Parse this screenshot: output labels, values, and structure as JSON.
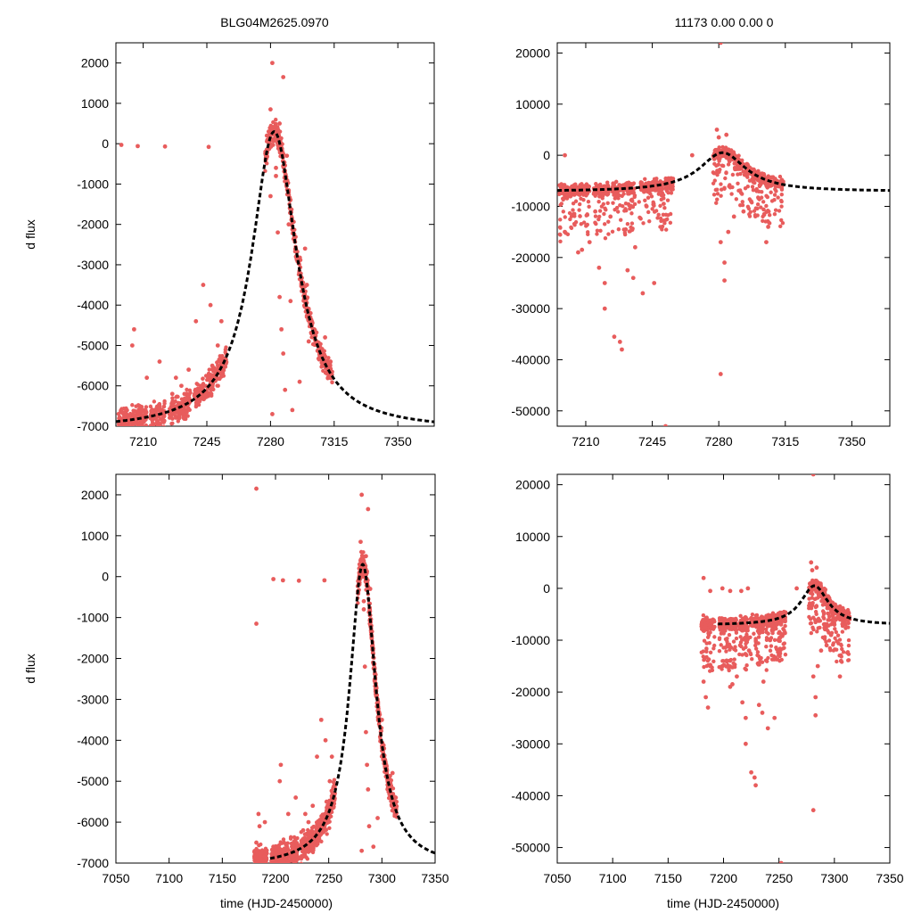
{
  "titles": {
    "left": "BLG04M2625.0970",
    "right": "11173  0.00  0.00  0"
  },
  "labels": {
    "ylabel": "d flux",
    "xlabel": "time (HJD-2450000)"
  },
  "colors": {
    "data": "#e85c5c",
    "model": "#000000"
  },
  "chart_data": [
    {
      "type": "scatter",
      "panel": "top-left",
      "xlim": [
        7195,
        7370
      ],
      "ylim": [
        -7000,
        2500
      ],
      "x_ticks": [
        7210,
        7245,
        7280,
        7315,
        7350
      ],
      "y_ticks": [
        2000,
        1000,
        0,
        -1000,
        -2000,
        -3000,
        -4000,
        -5000,
        -6000,
        -7000
      ],
      "model_curve": {
        "t0": 7282,
        "peak": 300,
        "base": -7100,
        "width": 15,
        "shape": "lorentzian"
      },
      "series": [
        {
          "kind": "points",
          "values": [
            [
              7198,
              -30
            ],
            [
              7207,
              -60
            ],
            [
              7222,
              -70
            ],
            [
              7246,
              -80
            ],
            [
              7281,
              2000
            ],
            [
              7287,
              1650
            ],
            [
              7285,
              500
            ],
            [
              7280,
              850
            ],
            [
              7279,
              300
            ],
            [
              7283,
              -600
            ],
            [
              7290,
              -1200
            ],
            [
              7294,
              -2800
            ],
            [
              7297,
              -3400
            ],
            [
              7302,
              -4200
            ],
            [
              7306,
              -5000
            ],
            [
              7310,
              -4800
            ],
            [
              7313,
              -5400
            ],
            [
              7285,
              -3800
            ],
            [
              7287,
              -5200
            ],
            [
              7288,
              -6100
            ],
            [
              7281,
              -6700
            ],
            [
              7292,
              -6600
            ],
            [
              7286,
              -4600
            ],
            [
              7291,
              -3900
            ],
            [
              7299,
              -2600
            ],
            [
              7243,
              -3500
            ],
            [
              7247,
              -4000
            ],
            [
              7239,
              -4400
            ],
            [
              7235,
              -5600
            ],
            [
              7228,
              -5800
            ],
            [
              7226,
              -6200
            ],
            [
              7219,
              -5400
            ],
            [
              7212,
              -5800
            ],
            [
              7205,
              -4600
            ],
            [
              7204,
              -5000
            ],
            [
              7208,
              -6500
            ],
            [
              7214,
              -6800
            ],
            [
              7198,
              -6600
            ],
            [
              7201,
              -6900
            ],
            [
              7233,
              -6400
            ],
            [
              7251,
              -5000
            ],
            [
              7253,
              -4400
            ],
            [
              7243,
              -6100
            ],
            [
              7231,
              -6000
            ],
            [
              7248,
              -5500
            ],
            [
              7284,
              -2200
            ],
            [
              7290,
              -2000
            ],
            [
              7300,
              -3500
            ],
            [
              7304,
              -4600
            ],
            [
              7308,
              -5200
            ],
            [
              7296,
              -5900
            ],
            [
              7301,
              -4900
            ],
            [
              7283,
              -800
            ],
            [
              7289,
              -300
            ],
            [
              7278,
              200
            ],
            [
              7282,
              100
            ],
            [
              7280,
              -1300
            ]
          ]
        }
      ]
    },
    {
      "type": "scatter",
      "panel": "top-right",
      "xlim": [
        7195,
        7370
      ],
      "ylim": [
        -53000,
        22000
      ],
      "x_ticks": [
        7210,
        7245,
        7280,
        7315,
        7350
      ],
      "y_ticks": [
        20000,
        10000,
        0,
        -10000,
        -20000,
        -30000,
        -40000,
        -50000
      ],
      "model_curve": {
        "t0": 7282,
        "peak": 500,
        "base": -7100,
        "width": 15,
        "shape": "lorentzian"
      },
      "series": [
        {
          "kind": "points",
          "values": [
            [
              7281,
              22000
            ],
            [
              7281,
              -42800
            ],
            [
              7252,
              -53000
            ],
            [
              7199,
              -15000
            ],
            [
              7206,
              -19000
            ],
            [
              7208,
              -18500
            ],
            [
              7212,
              -17000
            ],
            [
              7217,
              -22000
            ],
            [
              7220,
              -25000
            ],
            [
              7220,
              -30000
            ],
            [
              7225,
              -35500
            ],
            [
              7228,
              -36500
            ],
            [
              7229,
              -38000
            ],
            [
              7232,
              -22500
            ],
            [
              7235,
              -24000
            ],
            [
              7240,
              -27000
            ],
            [
              7246,
              -25000
            ],
            [
              7231,
              -14500
            ],
            [
              7236,
              -18000
            ],
            [
              7281,
              -17000
            ],
            [
              7283,
              -24500
            ],
            [
              7283,
              -21000
            ],
            [
              7285,
              -15000
            ],
            [
              7288,
              -12000
            ],
            [
              7293,
              -11000
            ],
            [
              7306,
              -14000
            ],
            [
              7305,
              -17000
            ],
            [
              7280,
              3500
            ],
            [
              7279,
              5000
            ],
            [
              7284,
              4000
            ],
            [
              7215,
              -11000
            ],
            [
              7223,
              -12000
            ],
            [
              7242,
              -10000
            ],
            [
              7251,
              -9500
            ],
            [
              7297,
              -9000
            ],
            [
              7300,
              -7000
            ],
            [
              7199,
              0
            ],
            [
              7266,
              0
            ],
            [
              7310,
              -6000
            ]
          ]
        }
      ]
    },
    {
      "type": "scatter",
      "panel": "bottom-left",
      "xlim": [
        7050,
        7350
      ],
      "ylim": [
        -7000,
        2500
      ],
      "x_ticks": [
        7050,
        7100,
        7150,
        7200,
        7250,
        7300,
        7350
      ],
      "y_ticks": [
        2000,
        1000,
        0,
        -1000,
        -2000,
        -3000,
        -4000,
        -5000,
        -6000,
        -7000
      ],
      "model_curve": {
        "t0": 7282,
        "peak": 300,
        "base": -7100,
        "width": 15,
        "shape": "lorentzian",
        "x_start": 7195
      },
      "series": [
        {
          "kind": "points",
          "values": [
            [
              7182,
              2150
            ],
            [
              7182,
              -1150
            ],
            [
              7198,
              -60
            ],
            [
              7207,
              -90
            ],
            [
              7222,
              -100
            ],
            [
              7246,
              -90
            ],
            [
              7281,
              2000
            ],
            [
              7287,
              1650
            ],
            [
              7285,
              500
            ],
            [
              7280,
              850
            ],
            [
              7279,
              300
            ],
            [
              7283,
              -600
            ],
            [
              7290,
              -1200
            ],
            [
              7294,
              -2800
            ],
            [
              7297,
              -3400
            ],
            [
              7302,
              -4200
            ],
            [
              7306,
              -5000
            ],
            [
              7310,
              -4800
            ],
            [
              7313,
              -5400
            ],
            [
              7285,
              -3800
            ],
            [
              7287,
              -5200
            ],
            [
              7288,
              -6100
            ],
            [
              7281,
              -6700
            ],
            [
              7292,
              -6600
            ],
            [
              7286,
              -4600
            ],
            [
              7243,
              -3500
            ],
            [
              7247,
              -4000
            ],
            [
              7239,
              -4400
            ],
            [
              7235,
              -5600
            ],
            [
              7228,
              -5800
            ],
            [
              7226,
              -6200
            ],
            [
              7219,
              -5400
            ],
            [
              7212,
              -5800
            ],
            [
              7205,
              -4600
            ],
            [
              7204,
              -5000
            ],
            [
              7208,
              -6500
            ],
            [
              7214,
              -6800
            ],
            [
              7198,
              -6600
            ],
            [
              7201,
              -6900
            ],
            [
              7185,
              -6100
            ],
            [
              7182,
              -6500
            ],
            [
              7186,
              -6900
            ],
            [
              7190,
              -6000
            ],
            [
              7184,
              -5800
            ],
            [
              7233,
              -6400
            ],
            [
              7251,
              -5000
            ],
            [
              7253,
              -4400
            ],
            [
              7243,
              -6100
            ],
            [
              7231,
              -6000
            ],
            [
              7248,
              -5500
            ],
            [
              7284,
              -2200
            ],
            [
              7300,
              -3500
            ],
            [
              7304,
              -4600
            ],
            [
              7308,
              -5200
            ],
            [
              7296,
              -5900
            ],
            [
              7283,
              -800
            ],
            [
              7289,
              -300
            ]
          ]
        }
      ]
    },
    {
      "type": "scatter",
      "panel": "bottom-right",
      "xlim": [
        7050,
        7350
      ],
      "ylim": [
        -53000,
        22000
      ],
      "x_ticks": [
        7050,
        7100,
        7150,
        7200,
        7250,
        7300,
        7350
      ],
      "y_ticks": [
        20000,
        10000,
        0,
        -10000,
        -20000,
        -30000,
        -40000,
        -50000
      ],
      "model_curve": {
        "t0": 7282,
        "peak": 500,
        "base": -7100,
        "width": 15,
        "shape": "lorentzian",
        "x_start": 7195
      },
      "series": [
        {
          "kind": "points",
          "values": [
            [
              7281,
              22000
            ],
            [
              7281,
              -42800
            ],
            [
              7252,
              -53000
            ],
            [
              7182,
              2000
            ],
            [
              7186,
              -23000
            ],
            [
              7184,
              -21000
            ],
            [
              7182,
              -18000
            ],
            [
              7188,
              -15000
            ],
            [
              7199,
              -15000
            ],
            [
              7206,
              -19000
            ],
            [
              7208,
              -18500
            ],
            [
              7212,
              -17000
            ],
            [
              7217,
              -22000
            ],
            [
              7220,
              -25000
            ],
            [
              7220,
              -30000
            ],
            [
              7225,
              -35500
            ],
            [
              7228,
              -36500
            ],
            [
              7229,
              -38000
            ],
            [
              7232,
              -22500
            ],
            [
              7235,
              -24000
            ],
            [
              7240,
              -27000
            ],
            [
              7246,
              -25000
            ],
            [
              7231,
              -14500
            ],
            [
              7236,
              -18000
            ],
            [
              7281,
              -17000
            ],
            [
              7283,
              -24500
            ],
            [
              7283,
              -21000
            ],
            [
              7285,
              -15000
            ],
            [
              7288,
              -12000
            ],
            [
              7293,
              -11000
            ],
            [
              7306,
              -14000
            ],
            [
              7305,
              -17000
            ],
            [
              7280,
              3500
            ],
            [
              7279,
              5000
            ],
            [
              7284,
              4000
            ],
            [
              7215,
              -11000
            ],
            [
              7223,
              -12000
            ],
            [
              7242,
              -10000
            ],
            [
              7251,
              -9500
            ],
            [
              7297,
              -9000
            ],
            [
              7300,
              -7000
            ],
            [
              7199,
              0
            ],
            [
              7266,
              0
            ],
            [
              7310,
              -6000
            ],
            [
              7188,
              -500
            ],
            [
              7206,
              -500
            ],
            [
              7216,
              -500
            ],
            [
              7222,
              0
            ]
          ]
        }
      ]
    }
  ]
}
